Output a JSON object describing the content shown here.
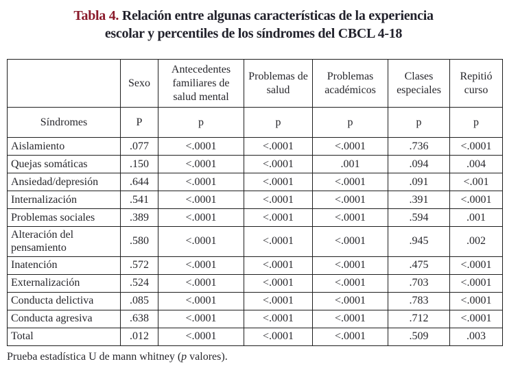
{
  "title": {
    "label": "Tabla 4.",
    "line1": " Relación entre algunas características de la experiencia",
    "line2": "escolar y percentiles de los síndromes del CBCL 4-18",
    "accent_color": "#8a1a2b",
    "text_color": "#22222c"
  },
  "table": {
    "columns": [
      {
        "header": "",
        "subheader": "Síndromes"
      },
      {
        "header": "Sexo",
        "subheader": "P"
      },
      {
        "header": "Antecedentes familiares de salud mental",
        "subheader": "p"
      },
      {
        "header": "Problemas de salud",
        "subheader": "p"
      },
      {
        "header": "Problemas académicos",
        "subheader": "p"
      },
      {
        "header": "Clases especiales",
        "subheader": "p"
      },
      {
        "header": "Repitió curso",
        "subheader": "p"
      }
    ],
    "rows": [
      {
        "label": "Aislamiento",
        "values": [
          ".077",
          "<.0001",
          "<.0001",
          "<.0001",
          ".736",
          "<.0001"
        ]
      },
      {
        "label": "Quejas somáticas",
        "values": [
          ".150",
          "<.0001",
          "<.0001",
          ".001",
          ".094",
          ".004"
        ]
      },
      {
        "label": "Ansiedad/depresión",
        "values": [
          ".644",
          "<.0001",
          "<.0001",
          "<.0001",
          ".091",
          "<.001"
        ]
      },
      {
        "label": "Internalización",
        "values": [
          ".541",
          "<.0001",
          "<.0001",
          "<.0001",
          ".391",
          "<.0001"
        ]
      },
      {
        "label": "Problemas sociales",
        "values": [
          ".389",
          "<.0001",
          "<.0001",
          "<.0001",
          ".594",
          ".001"
        ]
      },
      {
        "label": "Alteración del pensamiento",
        "values": [
          ".580",
          "<.0001",
          "<.0001",
          "<.0001",
          ".945",
          ".002"
        ]
      },
      {
        "label": "Inatención",
        "values": [
          ".572",
          "<.0001",
          "<.0001",
          "<.0001",
          ".475",
          "<.0001"
        ]
      },
      {
        "label": "Externalización",
        "values": [
          ".524",
          "<.0001",
          "<.0001",
          "<.0001",
          ".703",
          "<.0001"
        ]
      },
      {
        "label": "Conducta delictiva",
        "values": [
          ".085",
          "<.0001",
          "<.0001",
          "<.0001",
          ".783",
          "<.0001"
        ]
      },
      {
        "label": "Conducta agresiva",
        "values": [
          ".638",
          "<.0001",
          "<.0001",
          "<.0001",
          ".712",
          "<.0001"
        ]
      },
      {
        "label": "Total",
        "values": [
          ".012",
          "<.0001",
          "<.0001",
          "<.0001",
          ".509",
          ".003"
        ]
      }
    ]
  },
  "footnote": {
    "prefix": "Prueba estadística U de mann whitney (",
    "italic": "p",
    "suffix": " valores)."
  }
}
